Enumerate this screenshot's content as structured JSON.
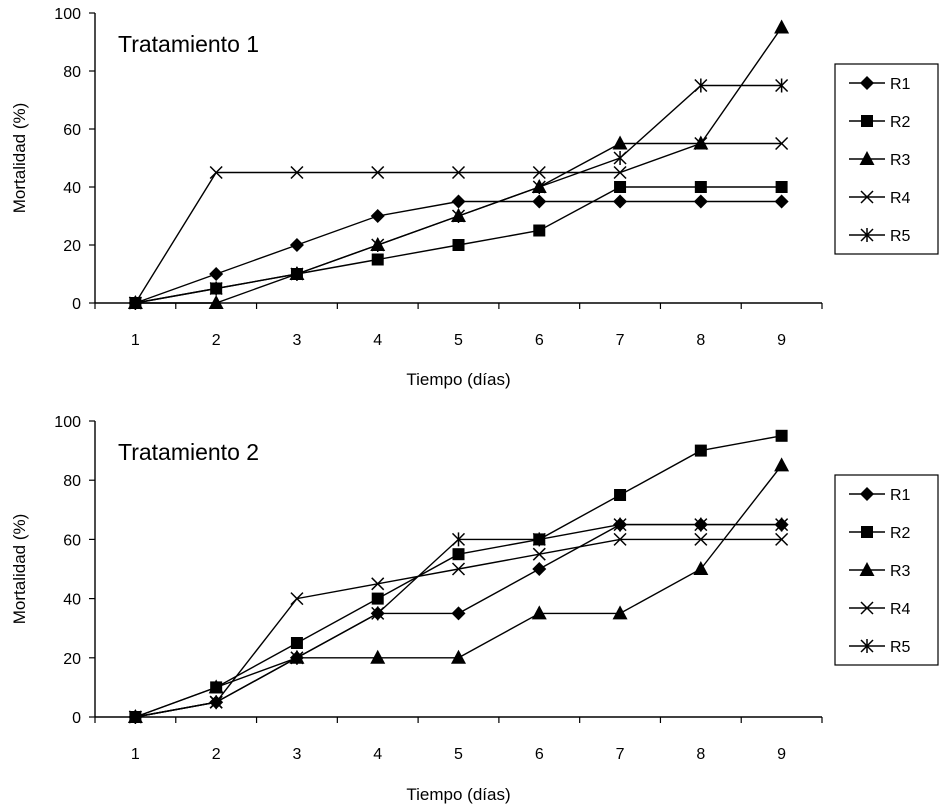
{
  "chart_data": [
    {
      "type": "line",
      "title": "Tratamiento 1",
      "xlabel": "Tiempo (días)",
      "ylabel": "Mortalidad (%)",
      "x": [
        1,
        2,
        3,
        4,
        5,
        6,
        7,
        8,
        9
      ],
      "ylim": [
        0,
        100
      ],
      "yticks": [
        0,
        20,
        40,
        60,
        80,
        100
      ],
      "grid": false,
      "legend_position": "right",
      "series": [
        {
          "name": "R1",
          "marker": "diamond",
          "values": [
            0,
            10,
            20,
            30,
            35,
            35,
            35,
            35,
            35
          ]
        },
        {
          "name": "R2",
          "marker": "square",
          "values": [
            0,
            5,
            10,
            15,
            20,
            25,
            40,
            40,
            40
          ]
        },
        {
          "name": "R3",
          "marker": "triangle",
          "values": [
            0,
            0,
            10,
            20,
            30,
            40,
            55,
            55,
            95
          ]
        },
        {
          "name": "R4",
          "marker": "x",
          "values": [
            0,
            45,
            45,
            45,
            45,
            45,
            45,
            55,
            55
          ]
        },
        {
          "name": "R5",
          "marker": "star",
          "values": [
            0,
            5,
            10,
            20,
            30,
            40,
            50,
            75,
            75
          ]
        }
      ]
    },
    {
      "type": "line",
      "title": "Tratamiento 2",
      "xlabel": "Tiempo (días)",
      "ylabel": "Mortalidad (%)",
      "x": [
        1,
        2,
        3,
        4,
        5,
        6,
        7,
        8,
        9
      ],
      "ylim": [
        0,
        100
      ],
      "yticks": [
        0,
        20,
        40,
        60,
        80,
        100
      ],
      "grid": false,
      "legend_position": "right",
      "series": [
        {
          "name": "R1",
          "marker": "diamond",
          "values": [
            0,
            5,
            20,
            35,
            35,
            50,
            65,
            65,
            65
          ]
        },
        {
          "name": "R2",
          "marker": "square",
          "values": [
            0,
            10,
            25,
            40,
            55,
            60,
            75,
            90,
            95
          ]
        },
        {
          "name": "R3",
          "marker": "triangle",
          "values": [
            0,
            10,
            20,
            20,
            20,
            35,
            35,
            50,
            85
          ]
        },
        {
          "name": "R4",
          "marker": "x",
          "values": [
            0,
            5,
            40,
            45,
            50,
            55,
            60,
            60,
            60
          ]
        },
        {
          "name": "R5",
          "marker": "star",
          "values": [
            0,
            5,
            20,
            35,
            60,
            60,
            65,
            65,
            65
          ]
        }
      ]
    }
  ]
}
